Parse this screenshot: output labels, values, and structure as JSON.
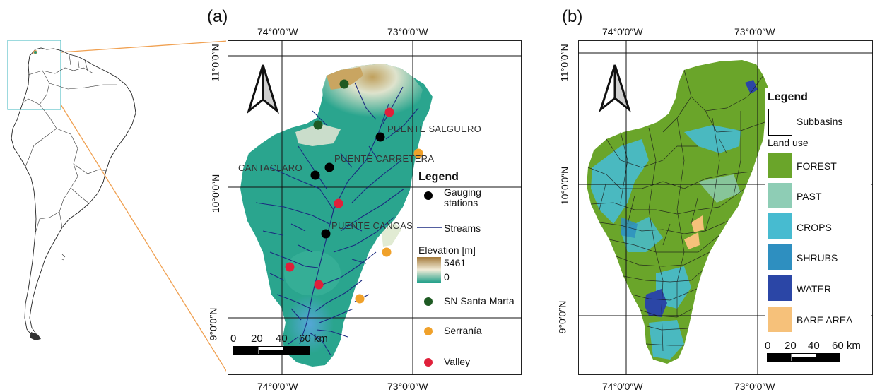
{
  "panel_a": {
    "label": "(a)",
    "lon_labels": [
      "74°0′0″W",
      "73°0′0″W"
    ],
    "lat_labels": [
      "11°0′0″N",
      "10°0′0″N",
      "9°0′0″N"
    ],
    "stations": [
      "PUENTE SALGUERO",
      "PUENTE CARRETERA",
      "CANTACLARO",
      "PUENTE CANOAS"
    ],
    "legend": {
      "title": "Legend",
      "gauging": "Gauging stations",
      "gauging_l1": "Gauging",
      "gauging_l2": "stations",
      "streams": "Streams",
      "elevation_title": "Elevation [m]",
      "elev_max": "5461",
      "elev_min": "0",
      "sn_santa_marta": "SN Santa Marta",
      "serrania": "Serranía",
      "valley": "Valley"
    },
    "scale": {
      "ticks": [
        "0",
        "20",
        "40",
        "60 km"
      ]
    },
    "colors": {
      "gauging": "#000000",
      "sn": "#1e5a23",
      "serrania": "#f0a12a",
      "valley": "#e0203a",
      "streams": "#1a2a80"
    }
  },
  "panel_b": {
    "label": "(b)",
    "lon_labels": [
      "74°0′0″W",
      "73°0′0″W"
    ],
    "lat_labels": [
      "11°0′0″N",
      "10°0′0″N",
      "9°0′0″N"
    ],
    "legend": {
      "title": "Legend",
      "subbasins": "Subbasins",
      "land_use_title": "Land use",
      "classes": [
        {
          "name": "FOREST",
          "color": "#6aa52a"
        },
        {
          "name": "PAST",
          "color": "#8ecdb5"
        },
        {
          "name": "CROPS",
          "color": "#47bbd0"
        },
        {
          "name": "SHRUBS",
          "color": "#2e8fc0"
        },
        {
          "name": "WATER",
          "color": "#2b46a6"
        },
        {
          "name": "BARE AREA",
          "color": "#f6c17a"
        }
      ]
    },
    "scale": {
      "ticks": [
        "0",
        "20",
        "40",
        "60 km"
      ]
    }
  }
}
